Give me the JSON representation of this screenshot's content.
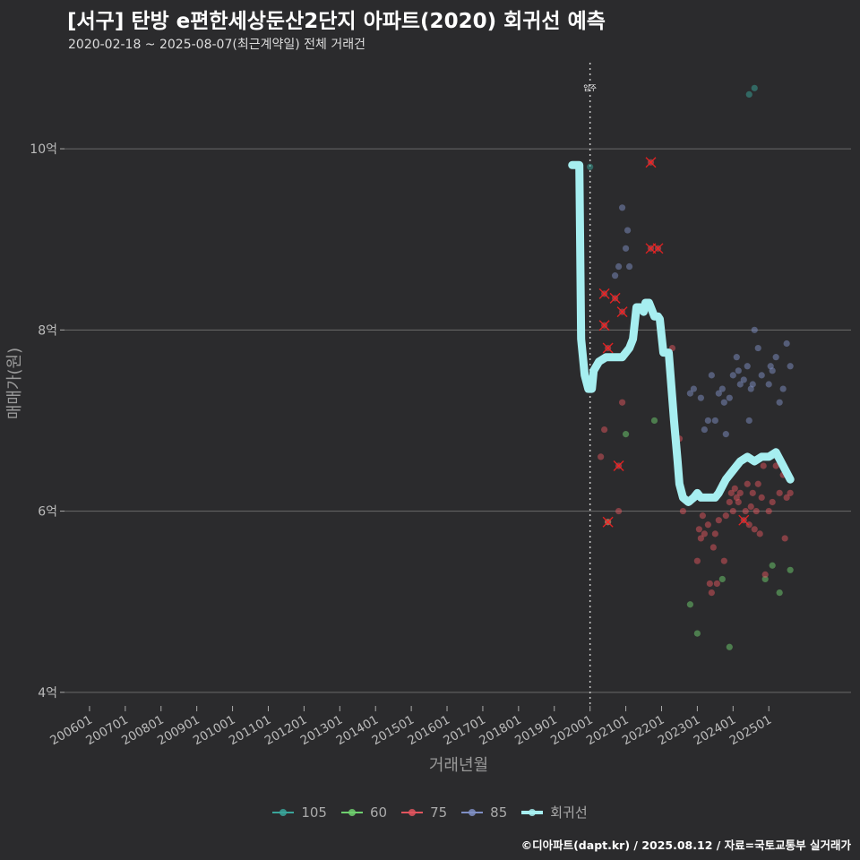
{
  "title": "[서구] 탄방 e편한세상둔산2단지 아파트(2020) 회귀선 예측",
  "subtitle": "2020-02-18 ~ 2025-08-07(최근계약일) 전체 거래건",
  "caption": "©디아파트(dapt.kr) / 2025.08.12 / 자료=국토교통부 실거래가",
  "colors": {
    "background": "#2b2b2d",
    "grid": "#6a6a6a",
    "s105": "#3aa59a",
    "s60": "#6fcf6f",
    "s75": "#e0555e",
    "s85": "#7f8fc4",
    "regression": "#a6eef0",
    "cancel_marker": "#ff2020"
  },
  "chart_data": {
    "type": "scatter",
    "title": "[서구] 탄방 e편한세상둔산2단지 아파트(2020) 회귀선 예측",
    "subtitle": "2020-02-18 ~ 2025-08-07(최근계약일) 전체 거래건",
    "xlabel": "거래년월",
    "ylabel": "매매가(원)",
    "x_ticks": [
      "200601",
      "200701",
      "200801",
      "200901",
      "201001",
      "201101",
      "201201",
      "201301",
      "201401",
      "201501",
      "201601",
      "201701",
      "201801",
      "201901",
      "202001",
      "202101",
      "202201",
      "202301",
      "202401",
      "202501"
    ],
    "xlim": [
      2005.3,
      2027.3
    ],
    "ylim": [
      3.85,
      10.95
    ],
    "y_ticks": [
      4,
      6,
      8,
      10
    ],
    "y_tick_labels": [
      "4억",
      "6억",
      "8억",
      "10억"
    ],
    "grid": true,
    "legend_position": "bottom",
    "annotation": {
      "label": "입주",
      "x": 2020.0
    },
    "series": [
      {
        "name": "105",
        "points": [
          [
            2020.0,
            9.8
          ],
          [
            2024.45,
            10.6
          ],
          [
            2024.6,
            10.67
          ]
        ]
      },
      {
        "name": "60",
        "points": [
          [
            2020.5,
            5.88
          ],
          [
            2021.0,
            6.85
          ],
          [
            2021.8,
            7.0
          ],
          [
            2022.8,
            4.97
          ],
          [
            2023.0,
            4.65
          ],
          [
            2023.7,
            5.25
          ],
          [
            2023.9,
            4.5
          ],
          [
            2024.9,
            5.25
          ],
          [
            2025.1,
            5.4
          ],
          [
            2025.3,
            5.1
          ],
          [
            2025.6,
            5.35
          ]
        ]
      },
      {
        "name": "75",
        "points": [
          [
            2020.3,
            6.6
          ],
          [
            2020.4,
            6.9
          ],
          [
            2020.4,
            8.4
          ],
          [
            2020.4,
            8.05
          ],
          [
            2020.5,
            7.8
          ],
          [
            2020.5,
            5.88
          ],
          [
            2020.7,
            8.35
          ],
          [
            2020.8,
            6.5
          ],
          [
            2020.8,
            6.0
          ],
          [
            2020.9,
            8.2
          ],
          [
            2020.9,
            7.2
          ],
          [
            2021.7,
            9.85
          ],
          [
            2021.7,
            8.9
          ],
          [
            2021.9,
            8.9
          ],
          [
            2022.3,
            7.8
          ],
          [
            2022.5,
            6.8
          ],
          [
            2022.6,
            6.0
          ],
          [
            2022.8,
            6.1
          ],
          [
            2023.0,
            5.45
          ],
          [
            2023.05,
            5.8
          ],
          [
            2023.1,
            5.7
          ],
          [
            2023.15,
            5.95
          ],
          [
            2023.2,
            5.75
          ],
          [
            2023.3,
            5.85
          ],
          [
            2023.35,
            5.2
          ],
          [
            2023.4,
            5.1
          ],
          [
            2023.45,
            5.6
          ],
          [
            2023.5,
            5.75
          ],
          [
            2023.55,
            5.2
          ],
          [
            2023.6,
            5.9
          ],
          [
            2023.7,
            6.3
          ],
          [
            2023.75,
            5.45
          ],
          [
            2023.8,
            5.95
          ],
          [
            2023.9,
            6.1
          ],
          [
            2023.95,
            6.2
          ],
          [
            2024.0,
            6.0
          ],
          [
            2024.05,
            6.25
          ],
          [
            2024.1,
            6.15
          ],
          [
            2024.15,
            6.1
          ],
          [
            2024.2,
            6.2
          ],
          [
            2024.3,
            5.9
          ],
          [
            2024.35,
            6.0
          ],
          [
            2024.4,
            6.3
          ],
          [
            2024.45,
            5.85
          ],
          [
            2024.5,
            6.05
          ],
          [
            2024.55,
            6.2
          ],
          [
            2024.6,
            5.8
          ],
          [
            2024.65,
            6.0
          ],
          [
            2024.7,
            6.3
          ],
          [
            2024.75,
            5.75
          ],
          [
            2024.8,
            6.15
          ],
          [
            2024.85,
            6.5
          ],
          [
            2024.9,
            5.3
          ],
          [
            2025.0,
            6.0
          ],
          [
            2025.1,
            6.1
          ],
          [
            2025.2,
            6.5
          ],
          [
            2025.3,
            6.2
          ],
          [
            2025.4,
            6.4
          ],
          [
            2025.45,
            5.7
          ],
          [
            2025.5,
            6.15
          ],
          [
            2025.6,
            6.2
          ]
        ]
      },
      {
        "name": "85",
        "points": [
          [
            2020.7,
            8.6
          ],
          [
            2020.8,
            8.7
          ],
          [
            2020.9,
            9.35
          ],
          [
            2021.0,
            8.9
          ],
          [
            2021.05,
            9.1
          ],
          [
            2021.1,
            8.7
          ],
          [
            2022.8,
            7.3
          ],
          [
            2022.9,
            7.35
          ],
          [
            2023.1,
            7.25
          ],
          [
            2023.2,
            6.9
          ],
          [
            2023.3,
            7.0
          ],
          [
            2023.4,
            7.5
          ],
          [
            2023.5,
            7.0
          ],
          [
            2023.6,
            7.3
          ],
          [
            2023.7,
            7.35
          ],
          [
            2023.75,
            7.2
          ],
          [
            2023.8,
            6.85
          ],
          [
            2023.9,
            7.25
          ],
          [
            2024.0,
            7.5
          ],
          [
            2024.1,
            7.7
          ],
          [
            2024.15,
            7.55
          ],
          [
            2024.2,
            7.4
          ],
          [
            2024.3,
            7.45
          ],
          [
            2024.4,
            7.6
          ],
          [
            2024.45,
            7.0
          ],
          [
            2024.5,
            7.35
          ],
          [
            2024.55,
            7.4
          ],
          [
            2024.6,
            8.0
          ],
          [
            2024.7,
            7.8
          ],
          [
            2024.8,
            7.5
          ],
          [
            2024.9,
            6.6
          ],
          [
            2025.0,
            7.4
          ],
          [
            2025.05,
            7.6
          ],
          [
            2025.1,
            7.55
          ],
          [
            2025.2,
            7.7
          ],
          [
            2025.3,
            7.2
          ],
          [
            2025.4,
            7.35
          ],
          [
            2025.5,
            7.85
          ],
          [
            2025.6,
            7.6
          ]
        ]
      },
      {
        "name": "회귀선",
        "points": [
          [
            2019.5,
            9.82
          ],
          [
            2019.7,
            9.82
          ],
          [
            2019.75,
            7.9
          ],
          [
            2019.85,
            7.5
          ],
          [
            2019.95,
            7.35
          ],
          [
            2020.05,
            7.35
          ],
          [
            2020.1,
            7.55
          ],
          [
            2020.25,
            7.65
          ],
          [
            2020.45,
            7.7
          ],
          [
            2020.6,
            7.7
          ],
          [
            2020.8,
            7.7
          ],
          [
            2020.9,
            7.7
          ],
          [
            2021.0,
            7.75
          ],
          [
            2021.1,
            7.8
          ],
          [
            2021.2,
            7.9
          ],
          [
            2021.3,
            8.25
          ],
          [
            2021.4,
            8.25
          ],
          [
            2021.5,
            8.2
          ],
          [
            2021.55,
            8.3
          ],
          [
            2021.65,
            8.3
          ],
          [
            2021.7,
            8.25
          ],
          [
            2021.8,
            8.15
          ],
          [
            2021.9,
            8.15
          ],
          [
            2021.95,
            8.12
          ],
          [
            2022.05,
            7.75
          ],
          [
            2022.2,
            7.75
          ],
          [
            2022.35,
            7.0
          ],
          [
            2022.45,
            6.55
          ],
          [
            2022.5,
            6.3
          ],
          [
            2022.6,
            6.15
          ],
          [
            2022.75,
            6.1
          ],
          [
            2022.9,
            6.15
          ],
          [
            2023.0,
            6.2
          ],
          [
            2023.1,
            6.15
          ],
          [
            2023.3,
            6.15
          ],
          [
            2023.5,
            6.15
          ],
          [
            2023.6,
            6.2
          ],
          [
            2023.8,
            6.35
          ],
          [
            2024.0,
            6.45
          ],
          [
            2024.2,
            6.55
          ],
          [
            2024.4,
            6.6
          ],
          [
            2024.6,
            6.55
          ],
          [
            2024.8,
            6.6
          ],
          [
            2025.0,
            6.6
          ],
          [
            2025.2,
            6.65
          ],
          [
            2025.4,
            6.5
          ],
          [
            2025.6,
            6.35
          ]
        ]
      }
    ],
    "cancelled_points": [
      [
        2020.4,
        8.4
      ],
      [
        2020.4,
        8.05
      ],
      [
        2020.5,
        7.8
      ],
      [
        2020.5,
        5.88
      ],
      [
        2020.7,
        8.35
      ],
      [
        2020.8,
        6.5
      ],
      [
        2020.9,
        8.2
      ],
      [
        2021.7,
        9.85
      ],
      [
        2021.7,
        8.9
      ],
      [
        2021.9,
        8.9
      ],
      [
        2024.3,
        5.9
      ]
    ]
  },
  "legend": [
    {
      "label": "105",
      "color": "#3aa59a"
    },
    {
      "label": "60",
      "color": "#6fcf6f"
    },
    {
      "label": "75",
      "color": "#e0555e"
    },
    {
      "label": "85",
      "color": "#7f8fc4"
    },
    {
      "label": "회귀선",
      "color": "#a6eef0"
    }
  ]
}
